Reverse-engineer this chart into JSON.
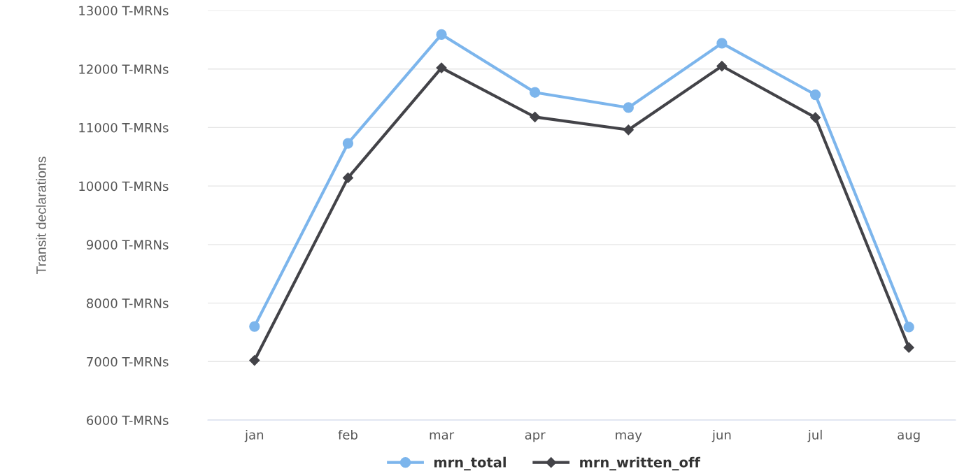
{
  "chart_data": {
    "type": "line",
    "ylabel": "Transit declarations",
    "categories": [
      "jan",
      "feb",
      "mar",
      "apr",
      "may",
      "jun",
      "jul",
      "aug"
    ],
    "series": [
      {
        "name": "mrn_total",
        "color": "#7cb5ec",
        "marker": "circle",
        "values": [
          7600,
          10730,
          12590,
          11600,
          11340,
          12440,
          11560,
          7590
        ]
      },
      {
        "name": "mrn_written_off",
        "color": "#434348",
        "marker": "diamond",
        "values": [
          7020,
          10140,
          12020,
          11180,
          10960,
          12050,
          11170,
          7240
        ]
      }
    ],
    "ylim": [
      6000,
      13000
    ],
    "yticks": [
      {
        "value": 6000,
        "label": "6000 T-MRNs"
      },
      {
        "value": 7000,
        "label": "7000 T-MRNs"
      },
      {
        "value": 8000,
        "label": "8000 T-MRNs"
      },
      {
        "value": 9000,
        "label": "9000 T-MRNs"
      },
      {
        "value": 10000,
        "label": "10000 T-MRNs"
      },
      {
        "value": 11000,
        "label": "11000 T-MRNs"
      },
      {
        "value": 12000,
        "label": "12000 T-MRNs"
      },
      {
        "value": 13000,
        "label": "13000 T-MRNs"
      }
    ],
    "grid": "y",
    "legend": "bottom",
    "line_style": "solid"
  }
}
